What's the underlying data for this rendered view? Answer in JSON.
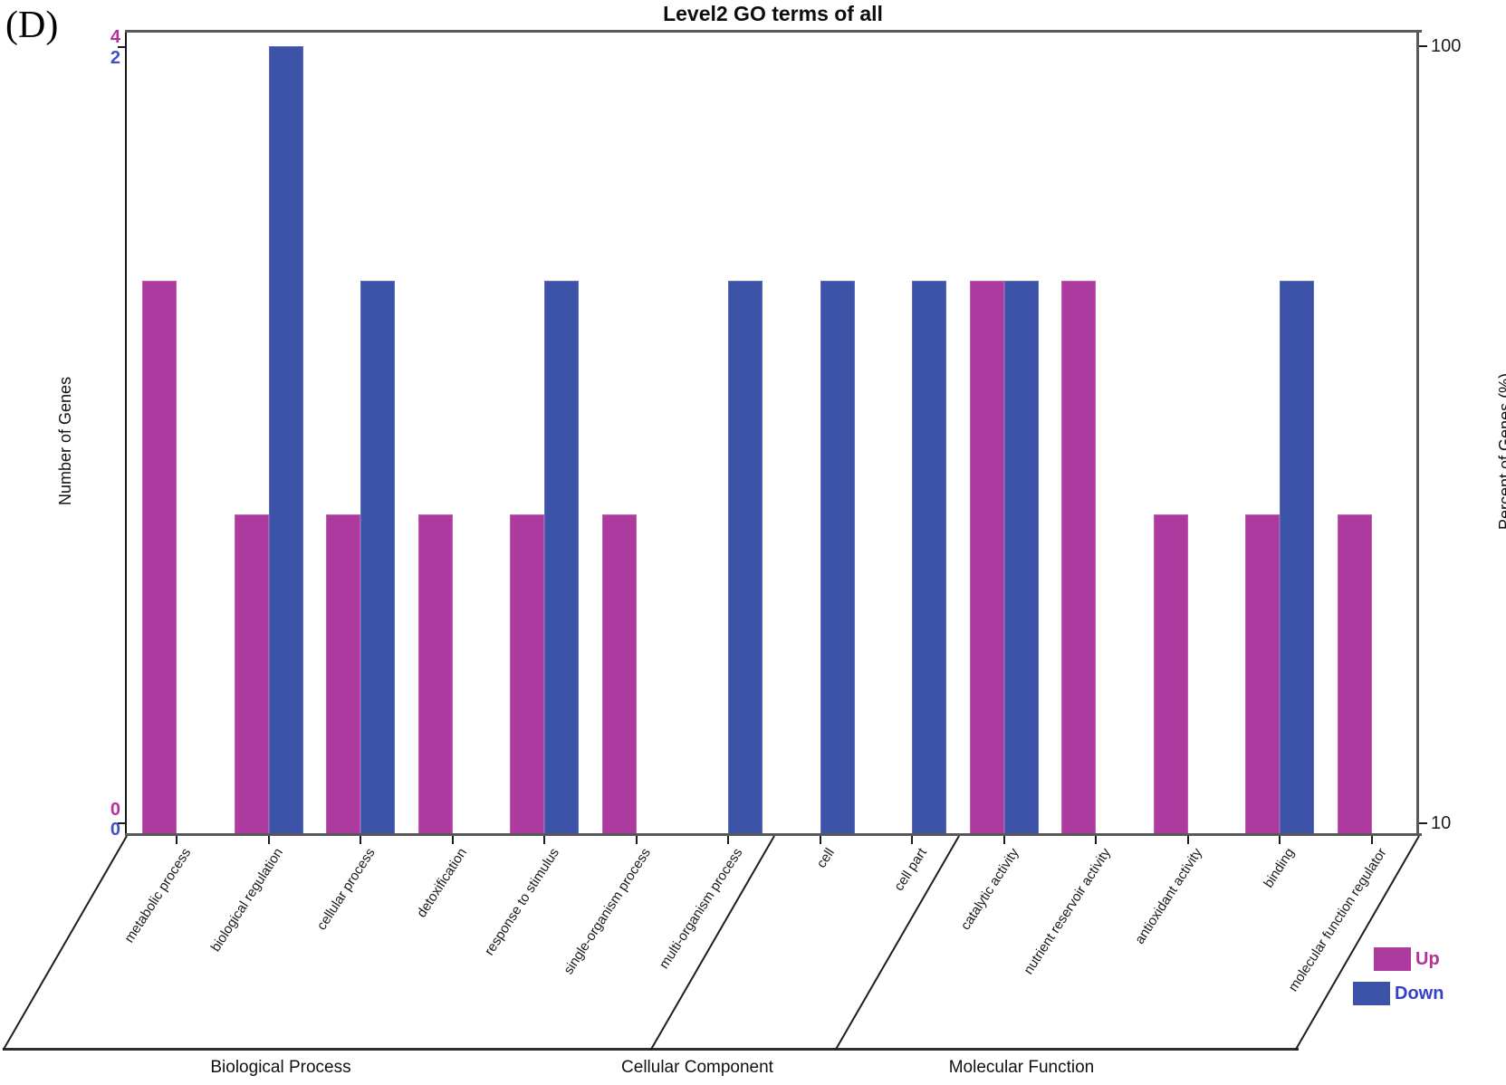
{
  "panel_label": "(D)",
  "title": "Level2 GO terms of all",
  "left_axis": {
    "label": "Number of Genes",
    "up_max": "4",
    "down_max": "2",
    "up_min": "0",
    "down_min": "0"
  },
  "right_axis": {
    "label": "Percent of Genes (%)",
    "max": "100",
    "min": "10"
  },
  "legend": {
    "up": {
      "label": "Up",
      "color": "#ad3a9e",
      "text_color": "#b6309c"
    },
    "down": {
      "label": "Down",
      "color": "#3c53a8",
      "text_color": "#3340c8"
    }
  },
  "colors": {
    "up_bar": "#ad3a9e",
    "down_bar": "#3c53a8",
    "up_axis_text": "#b6309c",
    "down_axis_text": "#4150c8",
    "frame": "#58585a"
  },
  "chart_data": {
    "type": "bar",
    "title": "Level2 GO terms of all",
    "ylabel_left": "Number of Genes",
    "ylabel_right": "Percent of Genes (%)",
    "right_axis_scale": "log10",
    "right_axis_range_pct": [
      10,
      100
    ],
    "left_axis_up_range": [
      0,
      4
    ],
    "left_axis_down_range": [
      0,
      2
    ],
    "up_total_genes": 4,
    "down_total_genes": 2,
    "legend_position": "bottom-right",
    "grid": false,
    "series_names": [
      "Up",
      "Down"
    ],
    "groups": [
      {
        "label": "Biological Process",
        "span": [
          0,
          6
        ]
      },
      {
        "label": "Cellular Component",
        "span": [
          7,
          8
        ]
      },
      {
        "label": "Molecular Function",
        "span": [
          9,
          13
        ]
      }
    ],
    "categories": [
      {
        "label": "metabolic process",
        "group": "Biological Process",
        "up": 2,
        "down": 0,
        "up_pct": 50,
        "down_pct": null
      },
      {
        "label": "biological regulation",
        "group": "Biological Process",
        "up": 1,
        "down": 2,
        "up_pct": 25,
        "down_pct": 100
      },
      {
        "label": "cellular process",
        "group": "Biological Process",
        "up": 1,
        "down": 1,
        "up_pct": 25,
        "down_pct": 50
      },
      {
        "label": "detoxification",
        "group": "Biological Process",
        "up": 1,
        "down": 0,
        "up_pct": 25,
        "down_pct": null
      },
      {
        "label": "response to stimulus",
        "group": "Biological Process",
        "up": 1,
        "down": 1,
        "up_pct": 25,
        "down_pct": 50
      },
      {
        "label": "single-organism process",
        "group": "Biological Process",
        "up": 1,
        "down": 0,
        "up_pct": 25,
        "down_pct": null
      },
      {
        "label": "multi-organism process",
        "group": "Biological Process",
        "up": 0,
        "down": 1,
        "up_pct": null,
        "down_pct": 50
      },
      {
        "label": "cell",
        "group": "Cellular Component",
        "up": 0,
        "down": 1,
        "up_pct": null,
        "down_pct": 50
      },
      {
        "label": "cell part",
        "group": "Cellular Component",
        "up": 0,
        "down": 1,
        "up_pct": null,
        "down_pct": 50
      },
      {
        "label": "catalytic activity",
        "group": "Molecular Function",
        "up": 2,
        "down": 1,
        "up_pct": 50,
        "down_pct": 50
      },
      {
        "label": "nutrient reservoir activity",
        "group": "Molecular Function",
        "up": 2,
        "down": 0,
        "up_pct": 50,
        "down_pct": null
      },
      {
        "label": "antioxidant activity",
        "group": "Molecular Function",
        "up": 1,
        "down": 0,
        "up_pct": 25,
        "down_pct": null
      },
      {
        "label": "binding",
        "group": "Molecular Function",
        "up": 1,
        "down": 1,
        "up_pct": 25,
        "down_pct": 50
      },
      {
        "label": "molecular function regulator",
        "group": "Molecular Function",
        "up": 1,
        "down": 0,
        "up_pct": 25,
        "down_pct": null
      }
    ]
  }
}
